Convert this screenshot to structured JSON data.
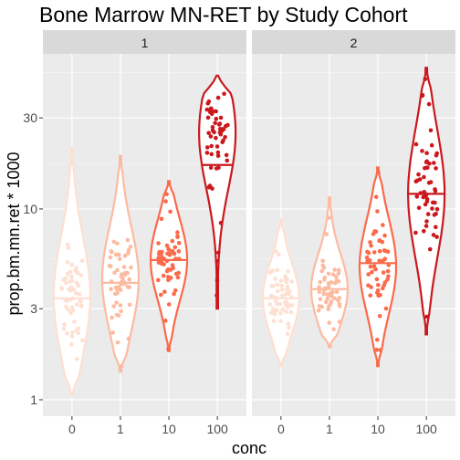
{
  "chart_data": {
    "type": "violin",
    "title": "Bone Marrow MN-RET by Study Cohort",
    "xlabel": "conc",
    "ylabel": "prop.bm.mn.ret * 1000",
    "y_scale": "log10",
    "ylim": [
      0.82,
      65
    ],
    "y_ticks": [
      1,
      3,
      10,
      30
    ],
    "y_tick_labels": [
      "1",
      "3",
      "10",
      "30"
    ],
    "categories": [
      "0",
      "1",
      "10",
      "100"
    ],
    "colors": [
      "#FEE0D2",
      "#FCBBA1",
      "#FB6A4A",
      "#CB181D"
    ],
    "grid": true,
    "legend": "none",
    "panels": [
      {
        "label": "1",
        "groups": [
          {
            "conc": "0",
            "min": 1.05,
            "max": 21,
            "median": 3.4,
            "mode": 3.5
          },
          {
            "conc": "1",
            "min": 1.4,
            "max": 19,
            "median": 4.1,
            "mode": 4.3
          },
          {
            "conc": "10",
            "min": 1.8,
            "max": 14,
            "median": 5.4,
            "mode": 5.4
          },
          {
            "conc": "100",
            "min": 3.0,
            "max": 50,
            "median": 17,
            "mode": 25
          }
        ]
      },
      {
        "label": "2",
        "groups": [
          {
            "conc": "0",
            "min": 1.5,
            "max": 8.8,
            "median": 3.4,
            "mode": 3.4
          },
          {
            "conc": "1",
            "min": 1.9,
            "max": 11.5,
            "median": 3.8,
            "mode": 3.8
          },
          {
            "conc": "10",
            "min": 1.5,
            "max": 16.5,
            "median": 5.2,
            "mode": 5.0
          },
          {
            "conc": "100",
            "min": 2.2,
            "max": 55,
            "median": 12,
            "mode": 12
          }
        ]
      }
    ]
  }
}
